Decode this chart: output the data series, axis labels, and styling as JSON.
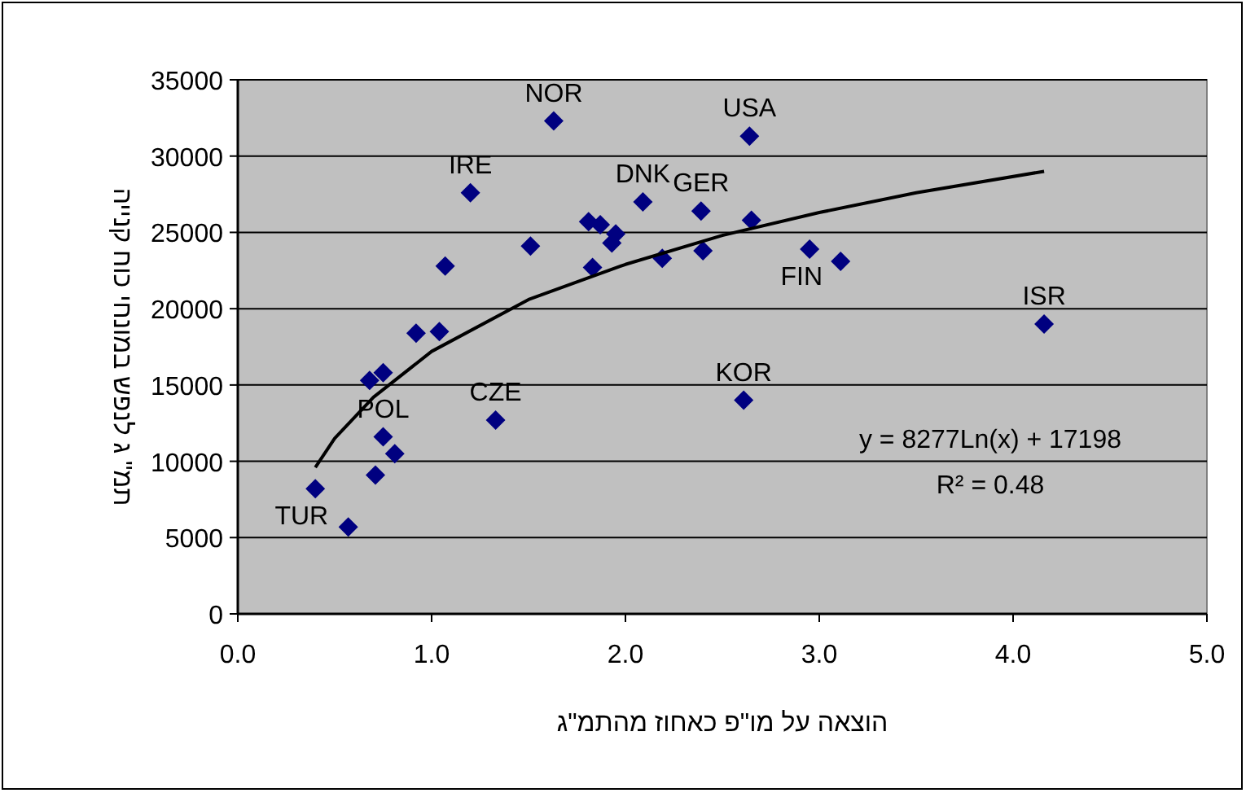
{
  "chart_data": {
    "type": "scatter",
    "xlabel": "הוצאה על מו\"פ כאחוז מהתמ\"ג",
    "ylabel": "תמ\" ג לנפש במונחי כוח קנייה",
    "xlim": [
      0,
      5
    ],
    "xticks": [
      {
        "value": 0,
        "label": "0.0"
      },
      {
        "value": 1,
        "label": "1.0"
      },
      {
        "value": 2,
        "label": "2.0"
      },
      {
        "value": 3,
        "label": "3.0"
      },
      {
        "value": 4,
        "label": "4.0"
      },
      {
        "value": 5,
        "label": "5.0"
      }
    ],
    "ylim": [
      0,
      35000
    ],
    "yticks": [
      0,
      5000,
      10000,
      15000,
      20000,
      25000,
      30000,
      35000
    ],
    "grid": "y",
    "series": [
      {
        "type": "scatter",
        "marker": "diamond",
        "color": "#000080",
        "x": [
          1.63,
          1.2,
          1.51,
          1.07,
          1.81,
          1.87,
          1.95,
          1.93,
          1.83,
          2.09,
          2.19,
          2.39,
          2.4,
          0.92,
          1.04,
          2.64,
          2.65,
          2.95,
          3.11,
          4.16,
          2.61,
          0.68,
          0.75,
          1.33,
          0.75,
          0.81,
          0.71,
          0.4,
          0.57
        ],
        "values": [
          32300,
          27600,
          24100,
          22800,
          25700,
          25500,
          24900,
          24300,
          22700,
          27000,
          23300,
          26400,
          23800,
          18400,
          18500,
          31300,
          25800,
          23900,
          23100,
          19000,
          14000,
          15300,
          15800,
          12700,
          11600,
          10500,
          9100,
          8200,
          5700
        ]
      },
      {
        "type": "line",
        "color": "#000000",
        "x": [
          0.4,
          0.5,
          0.7,
          1.0,
          1.5,
          2.0,
          2.5,
          3.0,
          3.5,
          4.16
        ],
        "values": [
          9600,
          11500,
          14200,
          17200,
          20600,
          22900,
          24800,
          26300,
          27600,
          29000
        ]
      }
    ],
    "annotations": [
      {
        "text": "NOR",
        "x": 1.63,
        "y": 32300
      },
      {
        "text": "IRE",
        "x": 1.2,
        "y": 27600
      },
      {
        "text": "DNK",
        "x": 2.09,
        "y": 27000
      },
      {
        "text": "GER",
        "x": 2.39,
        "y": 26400
      },
      {
        "text": "USA",
        "x": 2.64,
        "y": 31300
      },
      {
        "text": "FIN",
        "x": 2.95,
        "y": 23900
      },
      {
        "text": "ISR",
        "x": 4.16,
        "y": 19000
      },
      {
        "text": "KOR",
        "x": 2.61,
        "y": 14000
      },
      {
        "text": "CZE",
        "x": 1.33,
        "y": 12700
      },
      {
        "text": "POL",
        "x": 0.75,
        "y": 11600
      },
      {
        "text": "TUR",
        "x": 0.4,
        "y": 8200
      },
      "y = 8277Ln(x) + 17198",
      "R² = 0.48"
    ]
  }
}
